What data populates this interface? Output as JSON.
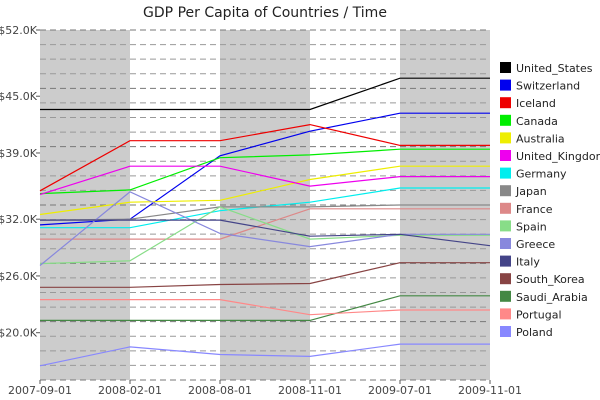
{
  "chart_data": {
    "type": "line",
    "title": "GDP Per Capita of Countries / Time",
    "xlabel": "",
    "ylabel": "",
    "x": [
      "2007-09-01",
      "2008-02-01",
      "2008-08-01",
      "2008-11-01",
      "2009-07-01",
      "2009-11-01"
    ],
    "ylim": [
      15000,
      52000
    ],
    "yticks": [
      {
        "value": 20000,
        "label": "$20.0K"
      },
      {
        "value": 26000,
        "label": "$26.0K"
      },
      {
        "value": 32000,
        "label": "$32.0K"
      },
      {
        "value": 39000,
        "label": "$39.0K"
      },
      {
        "value": 45000,
        "label": "$45.0K"
      },
      {
        "value": 52000,
        "label": "$52.0K"
      }
    ],
    "grid": true,
    "legend": "right",
    "series": [
      {
        "name": "United_States",
        "color": "#000000",
        "values": [
          43600,
          43600,
          43600,
          43600,
          46900,
          46900
        ]
      },
      {
        "name": "Switzerland",
        "color": "#0000ee",
        "values": [
          31400,
          32000,
          38700,
          41300,
          43200,
          43200
        ]
      },
      {
        "name": "Iceland",
        "color": "#ee0000",
        "values": [
          35000,
          40300,
          40300,
          42000,
          39800,
          39800
        ]
      },
      {
        "name": "Canada",
        "color": "#00ee00",
        "values": [
          34700,
          35100,
          38500,
          38800,
          39400,
          39400
        ]
      },
      {
        "name": "Australia",
        "color": "#eeee00",
        "values": [
          32500,
          33800,
          34000,
          36200,
          37600,
          37600
        ]
      },
      {
        "name": "United_Kingdom",
        "color": "#ee00ee",
        "values": [
          34600,
          37600,
          37600,
          35500,
          36500,
          36500
        ]
      },
      {
        "name": "Germany",
        "color": "#00eeee",
        "values": [
          31100,
          31100,
          32900,
          33800,
          35300,
          35300
        ]
      },
      {
        "name": "Japan",
        "color": "#888888",
        "values": [
          31900,
          32000,
          33300,
          33300,
          33500,
          33500
        ]
      },
      {
        "name": "France",
        "color": "#dd8888",
        "values": [
          29900,
          29900,
          29900,
          33100,
          33100,
          33100
        ]
      },
      {
        "name": "Spain",
        "color": "#88dd88",
        "values": [
          27300,
          27600,
          33300,
          29900,
          30300,
          30300
        ]
      },
      {
        "name": "Greece",
        "color": "#8888dd",
        "values": [
          27100,
          34900,
          30500,
          29100,
          30400,
          30400
        ]
      },
      {
        "name": "Italy",
        "color": "#444488",
        "values": [
          31900,
          31900,
          31900,
          30200,
          30400,
          29200
        ]
      },
      {
        "name": "South_Korea",
        "color": "#884444",
        "values": [
          24800,
          24800,
          25100,
          25200,
          27400,
          27400
        ]
      },
      {
        "name": "Saudi_Arabia",
        "color": "#448844",
        "values": [
          21300,
          21300,
          21300,
          21300,
          23900,
          23900
        ]
      },
      {
        "name": "Portugal",
        "color": "#ff8888",
        "values": [
          23500,
          23500,
          23500,
          21900,
          22400,
          22400
        ]
      },
      {
        "name": "Poland",
        "color": "#8888ff",
        "values": [
          16500,
          18500,
          17700,
          17500,
          18800,
          18800
        ]
      }
    ]
  }
}
